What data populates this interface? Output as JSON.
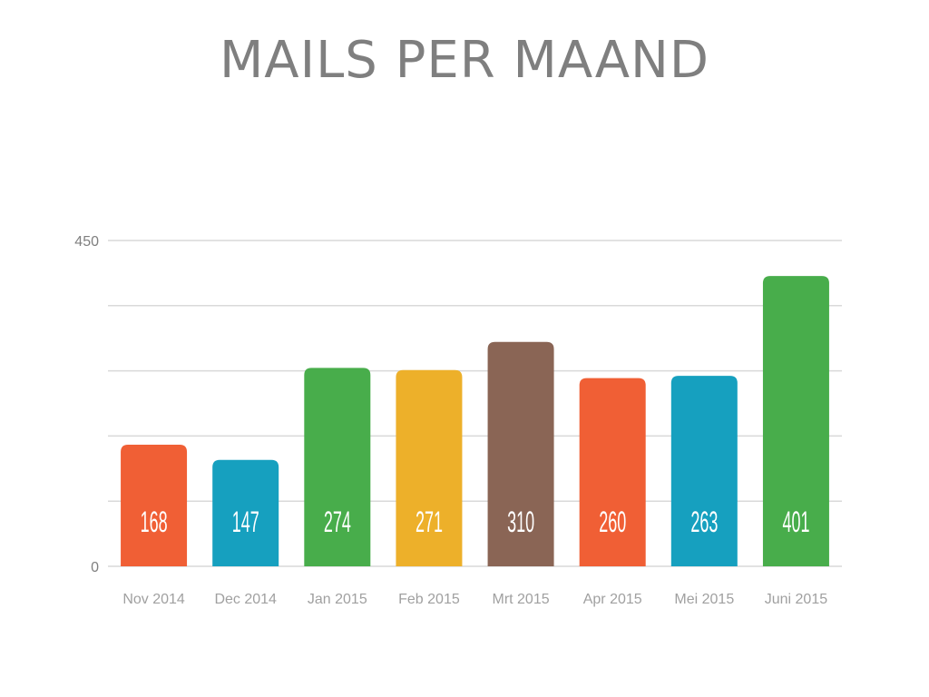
{
  "chart_data": {
    "type": "bar",
    "title": "MAILS PER MAAND",
    "categories": [
      "Nov 2014",
      "Dec 2014",
      "Jan 2015",
      "Feb 2015",
      "Mrt 2015",
      "Apr 2015",
      "Mei 2015",
      "Juni 2015"
    ],
    "values": [
      168,
      147,
      274,
      271,
      310,
      260,
      263,
      401
    ],
    "colors": [
      "#f05f35",
      "#16a0bf",
      "#48ad4b",
      "#edb02a",
      "#8a6555",
      "#f05f35",
      "#16a0bf",
      "#48ad4b"
    ],
    "ylim": [
      0,
      450
    ],
    "yticks": [
      0,
      450
    ],
    "grid_lines": [
      0,
      90,
      180,
      270,
      360,
      450
    ],
    "grid": true,
    "legend": "none",
    "xlabel": "",
    "ylabel": ""
  }
}
